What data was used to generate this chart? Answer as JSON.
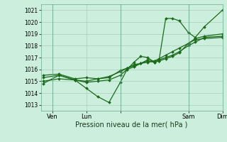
{
  "xlabel": "Pression niveau de la mer( hPa )",
  "ylim": [
    1012.5,
    1021.5
  ],
  "yticks": [
    1013,
    1014,
    1015,
    1016,
    1017,
    1018,
    1019,
    1020,
    1021
  ],
  "xlim": [
    0,
    8.0
  ],
  "xtick_positions": [
    0.5,
    2.0,
    3.5,
    6.5,
    8.0
  ],
  "xtick_labels": [
    "Ven",
    "Lun",
    "",
    "Sam",
    "Dim"
  ],
  "vline_positions": [
    0.5,
    3.5,
    6.5,
    8.0
  ],
  "bg_color": "#cceedd",
  "grid_color": "#aaccbb",
  "line_color": "#1a6b1a",
  "series1_x": [
    0.1,
    0.8,
    1.5,
    2.0,
    2.5,
    3.0,
    3.5,
    3.8,
    4.1,
    4.4,
    4.7,
    5.0,
    5.2,
    5.5,
    5.8,
    6.1,
    6.5,
    6.8,
    7.2,
    8.0
  ],
  "series1_y": [
    1014.8,
    1015.5,
    1015.1,
    1014.4,
    1013.7,
    1013.2,
    1014.9,
    1016.0,
    1016.6,
    1017.1,
    1017.0,
    1016.6,
    1016.7,
    1020.3,
    1020.3,
    1020.1,
    1019.1,
    1018.7,
    1019.6,
    1021.0
  ],
  "series2_x": [
    0.1,
    0.8,
    1.5,
    2.0,
    2.5,
    3.0,
    3.5,
    3.8,
    4.1,
    4.4,
    4.7,
    5.0,
    5.2,
    5.5,
    5.8,
    6.1,
    6.5,
    6.8,
    7.2,
    8.0
  ],
  "series2_y": [
    1015.5,
    1015.6,
    1015.2,
    1015.3,
    1015.2,
    1015.4,
    1015.8,
    1016.1,
    1016.3,
    1016.5,
    1016.7,
    1016.6,
    1016.8,
    1017.0,
    1017.2,
    1017.5,
    1018.0,
    1018.3,
    1018.7,
    1018.8
  ],
  "series3_x": [
    0.1,
    0.8,
    1.5,
    2.0,
    2.5,
    3.0,
    3.5,
    3.8,
    4.1,
    4.4,
    4.7,
    5.0,
    5.2,
    5.5,
    5.8,
    6.1,
    6.5,
    6.8,
    7.2,
    8.0
  ],
  "series3_y": [
    1015.3,
    1015.5,
    1015.1,
    1015.0,
    1015.2,
    1015.3,
    1015.9,
    1016.1,
    1016.4,
    1016.5,
    1016.8,
    1016.7,
    1016.9,
    1017.2,
    1017.5,
    1017.8,
    1018.2,
    1018.6,
    1018.8,
    1019.0
  ],
  "series4_x": [
    0.1,
    0.8,
    1.5,
    2.0,
    2.5,
    3.0,
    3.5,
    3.8,
    4.1,
    4.4,
    4.7,
    5.0,
    5.2,
    5.5,
    5.8,
    6.1,
    6.5,
    6.8,
    7.2,
    8.0
  ],
  "series4_y": [
    1015.0,
    1015.2,
    1015.1,
    1014.9,
    1015.0,
    1015.1,
    1015.5,
    1016.0,
    1016.2,
    1016.5,
    1016.6,
    1016.7,
    1016.7,
    1016.9,
    1017.1,
    1017.4,
    1018.2,
    1018.5,
    1018.6,
    1018.7
  ]
}
